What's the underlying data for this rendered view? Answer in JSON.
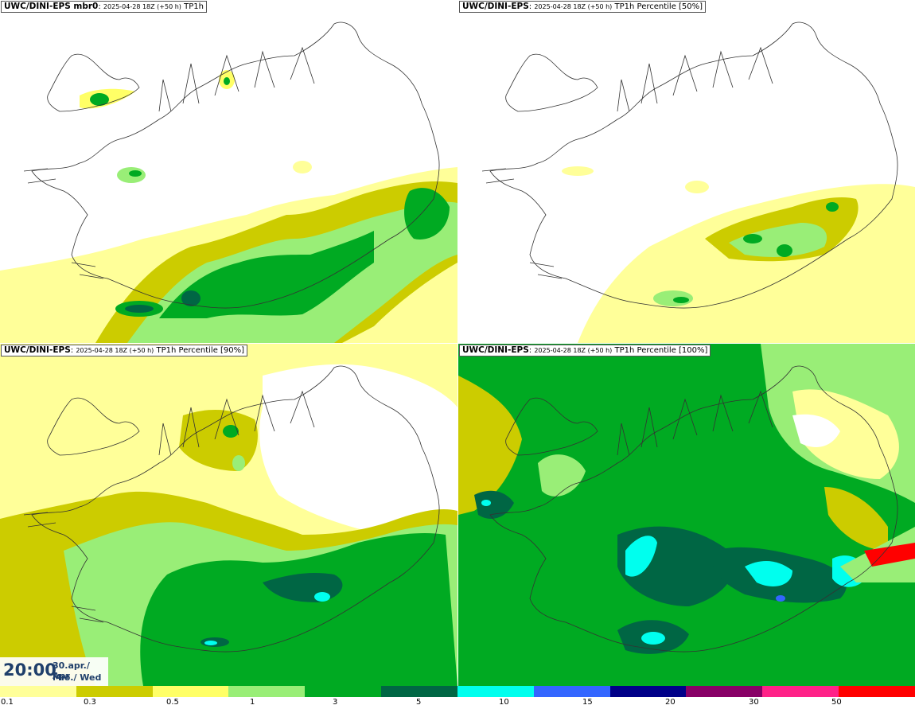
{
  "panels": [
    {
      "model": "UWC/DINI-EPS mbr0",
      "run": "2025-04-28 18Z (+50 h)",
      "field": "TP1h"
    },
    {
      "model": "UWC/DINI-EPS",
      "run": "2025-04-28 18Z (+50 h)",
      "field": "TP1h Percentile [50%]"
    },
    {
      "model": "UWC/DINI-EPS",
      "run": "2025-04-28 18Z (+50 h)",
      "field": "TP1h Percentile [90%]"
    },
    {
      "model": "UWC/DINI-EPS",
      "run": "2025-04-28 18Z (+50 h)",
      "field": "TP1h Percentile [100%]"
    }
  ],
  "valid_time": {
    "time": "20:00",
    "date": "30.apr./ Apr",
    "weekday": "Mið./ Wed"
  },
  "colorbar": {
    "labels": [
      "0.1",
      "0.3",
      "0.5",
      "1",
      "3",
      "5",
      "10",
      "15",
      "20",
      "30",
      "50"
    ],
    "colors": [
      "#ffff99",
      "#cccc00",
      "#ffff66",
      "#99ee77",
      "#00aa22",
      "#006644",
      "#00ffee",
      "#3366ff",
      "#000088",
      "#880066",
      "#ff2288",
      "#ff0000"
    ]
  },
  "map": {
    "land_outline": "#333333",
    "fields": {
      "light_yellow": "#ffff99",
      "olive": "#cccc00",
      "light_green": "#99ee77",
      "green": "#00aa22",
      "dark_green": "#006644",
      "cyan": "#00ffee",
      "blue": "#3366ff"
    }
  }
}
